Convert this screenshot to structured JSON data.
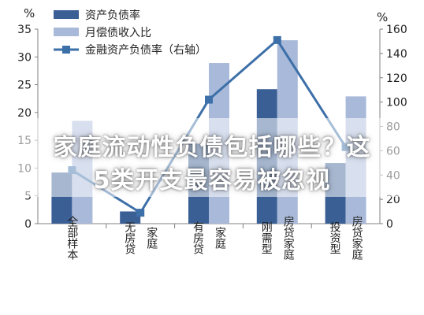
{
  "chart_data": {
    "type": "bar",
    "left_unit": "%",
    "right_unit": "%",
    "ylim_left": [
      0,
      35
    ],
    "ylim_right": [
      0,
      160
    ],
    "yticks_left": [
      "0",
      "5",
      "10",
      "15",
      "20",
      "25",
      "30",
      "35"
    ],
    "yticks_right": [
      "0",
      "20",
      "40",
      "60",
      "80",
      "100",
      "120",
      "140",
      "160"
    ],
    "categories": [
      {
        "lines": [
          {
            "t": "全部样本"
          }
        ]
      },
      {
        "lines": [
          {
            "t": "无房贷"
          },
          {
            "t": "家庭"
          }
        ]
      },
      {
        "lines": [
          {
            "t": "有房贷"
          },
          {
            "t": "家庭"
          }
        ]
      },
      {
        "lines": [
          {
            "t": "刚需型"
          },
          {
            "t": "房贷家庭"
          }
        ]
      },
      {
        "lines": [
          {
            "t": "投资型"
          },
          {
            "t": "房贷家庭"
          }
        ]
      }
    ],
    "series": [
      {
        "name": "资产负债率",
        "type": "bar",
        "axis": "left",
        "color": "#3a5f95",
        "values": [
          9.2,
          2.2,
          14.4,
          24.2,
          10.9
        ]
      },
      {
        "name": "月偿债收入比",
        "type": "bar",
        "axis": "left",
        "color": "#a9b9d9",
        "values": [
          18.5,
          0,
          28.9,
          33.0,
          22.9
        ]
      },
      {
        "name": "金融资产负债率（右轴）",
        "type": "line",
        "axis": "right",
        "color": "#3d6fa8",
        "values": [
          44,
          9,
          102,
          151,
          63
        ]
      }
    ],
    "legend_position": "top-left",
    "grid": false
  },
  "overlay": {
    "line1": "家庭流动性负债包括哪些？这",
    "line2": "5类开支最容易被忽视"
  }
}
